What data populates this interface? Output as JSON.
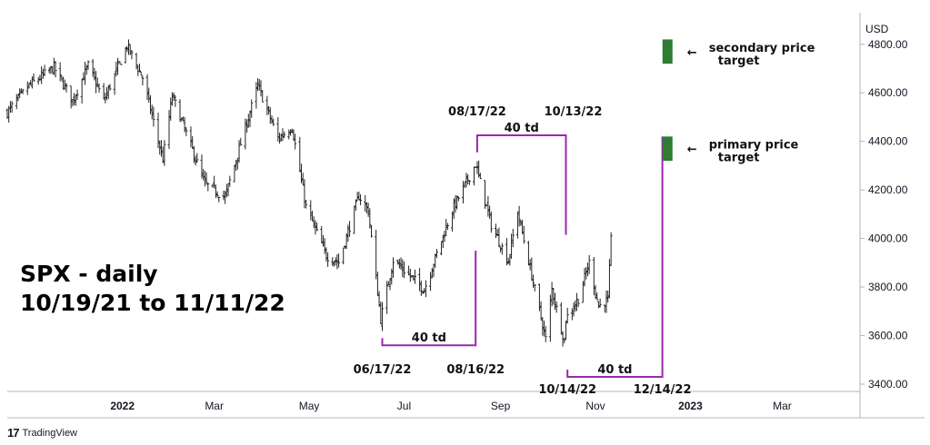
{
  "chart_data": {
    "type": "ohlc",
    "symbol": "SPX - daily",
    "title_line1": "SPX - daily",
    "title_line2": "10/19/21 to 11/11/22",
    "currency_label": "USD",
    "ylim": [
      3370,
      4930
    ],
    "y_ticks": [
      {
        "value": 4800,
        "label": "4800.00"
      },
      {
        "value": 4600,
        "label": "4600.00"
      },
      {
        "value": 4400,
        "label": "4400.00"
      },
      {
        "value": 4200,
        "label": "4200.00"
      },
      {
        "value": 4000,
        "label": "4000.00"
      },
      {
        "value": 3800,
        "label": "3800.00"
      },
      {
        "value": 3600,
        "label": "3600.00"
      },
      {
        "value": 3400,
        "label": "3400.00"
      }
    ],
    "x_range": [
      "2021-10-19",
      "2023-04-20"
    ],
    "x_ticks": [
      {
        "date": "2022-01-01",
        "label": "2022",
        "bold": true
      },
      {
        "date": "2022-03-01",
        "label": "Mar",
        "bold": false
      },
      {
        "date": "2022-05-01",
        "label": "May",
        "bold": false
      },
      {
        "date": "2022-07-01",
        "label": "Jul",
        "bold": false
      },
      {
        "date": "2022-09-01",
        "label": "Sep",
        "bold": false
      },
      {
        "date": "2022-11-01",
        "label": "Nov",
        "bold": false
      },
      {
        "date": "2023-01-01",
        "label": "2023",
        "bold": true
      },
      {
        "date": "2023-03-01",
        "label": "Mar",
        "bold": false
      }
    ],
    "price_path": [
      [
        "2021-10-19",
        4519
      ],
      [
        "2021-11-02",
        4630
      ],
      [
        "2021-11-18",
        4705
      ],
      [
        "2021-11-30",
        4567
      ],
      [
        "2021-12-10",
        4712
      ],
      [
        "2021-12-20",
        4568
      ],
      [
        "2022-01-04",
        4793
      ],
      [
        "2022-01-14",
        4662
      ],
      [
        "2022-01-27",
        4326
      ],
      [
        "2022-02-02",
        4589
      ],
      [
        "2022-02-23",
        4225
      ],
      [
        "2022-03-08",
        4170
      ],
      [
        "2022-03-29",
        4631
      ],
      [
        "2022-04-11",
        4412
      ],
      [
        "2022-04-20",
        4459
      ],
      [
        "2022-04-29",
        4131
      ],
      [
        "2022-05-12",
        3930
      ],
      [
        "2022-05-20",
        3901
      ],
      [
        "2022-06-02",
        4176
      ],
      [
        "2022-06-08",
        4115
      ],
      [
        "2022-06-16",
        3667
      ],
      [
        "2022-06-24",
        3911
      ],
      [
        "2022-07-14",
        3790
      ],
      [
        "2022-08-01",
        4118
      ],
      [
        "2022-08-16",
        4305
      ],
      [
        "2022-08-26",
        4057
      ],
      [
        "2022-09-06",
        3908
      ],
      [
        "2022-09-12",
        4110
      ],
      [
        "2022-09-30",
        3586
      ],
      [
        "2022-10-04",
        3791
      ],
      [
        "2022-10-12",
        3577
      ],
      [
        "2022-10-13",
        3670
      ],
      [
        "2022-10-21",
        3752
      ],
      [
        "2022-10-28",
        3901
      ],
      [
        "2022-11-03",
        3720
      ],
      [
        "2022-11-09",
        3749
      ],
      [
        "2022-11-11",
        3992
      ]
    ],
    "targets": [
      {
        "name": "secondary price target",
        "label_line1": "secondary price",
        "label_line2": "target",
        "low": 4720,
        "high": 4820,
        "color": "#2e7d32"
      },
      {
        "name": "primary price target",
        "label_line1": "primary price",
        "label_line2": "target",
        "low": 4320,
        "high": 4420,
        "color": "#2e7d32"
      }
    ],
    "cycle_brackets": [
      {
        "start": "2022-06-17",
        "end": "2022-08-16",
        "start_label": "06/17/22",
        "end_label": "08/16/22",
        "count_label": "40 td",
        "level": 3560,
        "side": "bottom",
        "end_tip": 3950
      },
      {
        "start": "2022-08-17",
        "end": "2022-10-13",
        "start_label": "08/17/22",
        "end_label": "10/13/22",
        "count_label": "40 td",
        "level": 4425,
        "side": "top",
        "end_tip": 4015
      },
      {
        "start": "2022-10-14",
        "end": "2022-12-14",
        "start_label": "10/14/22",
        "end_label": "12/14/22",
        "count_label": "40 td",
        "level": 3430,
        "side": "bottom",
        "end_tip": 4420
      }
    ],
    "bracket_color": "#9c27b0"
  },
  "footer": {
    "brand_mark": "17",
    "brand_name": "TradingView"
  }
}
